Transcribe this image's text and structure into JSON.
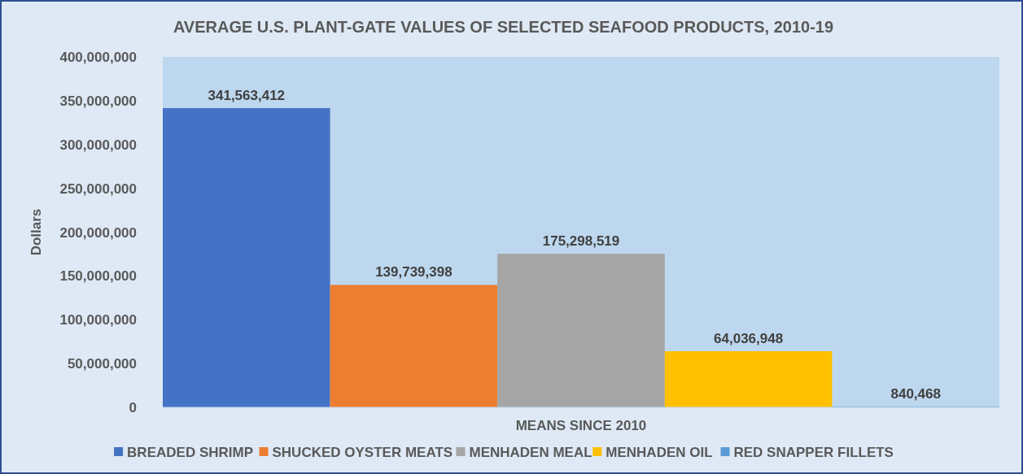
{
  "chart_data": {
    "type": "bar",
    "title": "AVERAGE U.S. PLANT-GATE VALUES OF SELECTED SEAFOOD PRODUCTS, 2010-19",
    "ylabel": "Dollars",
    "categories": [
      "MEANS SINCE 2010"
    ],
    "series": [
      {
        "name": "BREADED SHRIMP",
        "color": "#4472c4",
        "values": [
          341563412
        ],
        "value_labels": [
          "341,563,412"
        ]
      },
      {
        "name": "SHUCKED OYSTER MEATS",
        "color": "#ed7d31",
        "values": [
          139739398
        ],
        "value_labels": [
          "139,739,398"
        ]
      },
      {
        "name": "MENHADEN MEAL",
        "color": "#a5a5a5",
        "values": [
          175298519
        ],
        "value_labels": [
          "175,298,519"
        ]
      },
      {
        "name": "MENHADEN OIL",
        "color": "#ffc000",
        "values": [
          64036948
        ],
        "value_labels": [
          "64,036,948"
        ]
      },
      {
        "name": "RED SNAPPER FILLETS",
        "color": "#5b9bd5",
        "values": [
          840468
        ],
        "value_labels": [
          "840,468"
        ]
      }
    ],
    "ylim": [
      0,
      400000000
    ],
    "yticks": [
      {
        "value": 0,
        "label": "0"
      },
      {
        "value": 50000000,
        "label": "50,000,000"
      },
      {
        "value": 100000000,
        "label": "100,000,000"
      },
      {
        "value": 150000000,
        "label": "150,000,000"
      },
      {
        "value": 200000000,
        "label": "200,000,000"
      },
      {
        "value": 250000000,
        "label": "250,000,000"
      },
      {
        "value": 300000000,
        "label": "300,000,000"
      },
      {
        "value": 350000000,
        "label": "350,000,000"
      },
      {
        "value": 400000000,
        "label": "400,000,000"
      }
    ],
    "legend": "bottom"
  }
}
